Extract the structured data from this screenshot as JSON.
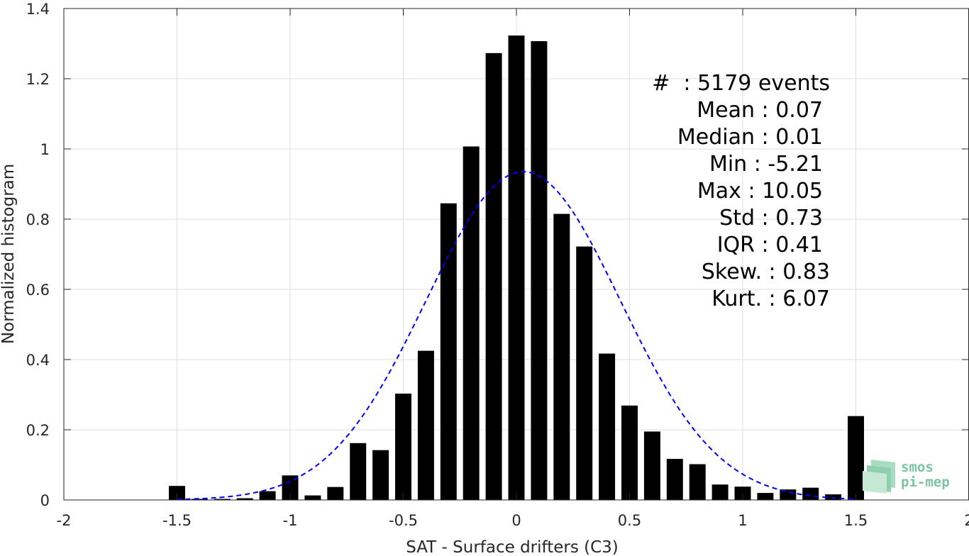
{
  "chart_data": {
    "type": "bar",
    "xlabel": "SAT - Surface drifters (C3)",
    "ylabel": "Normalized histogram",
    "xlim": [
      -2,
      2
    ],
    "ylim": [
      0,
      1.4
    ],
    "xticks": [
      -2,
      -1.5,
      -1,
      -0.5,
      0,
      0.5,
      1,
      1.5,
      2
    ],
    "xtick_labels": [
      "-2",
      "-1.5",
      "-1",
      "-0.5",
      "0",
      "0.5",
      "1",
      "1.5",
      "2"
    ],
    "yticks": [
      0,
      0.2,
      0.4,
      0.6,
      0.8,
      1,
      1.2,
      1.4
    ],
    "ytick_labels": [
      "0",
      "0.2",
      "0.4",
      "0.6",
      "0.8",
      "1",
      "1.2",
      "1.4"
    ],
    "grid": true,
    "bar_color": "#000000",
    "bin_width": 0.1,
    "bins": [
      -1.5,
      -1.4,
      -1.3,
      -1.2,
      -1.1,
      -1.0,
      -0.9,
      -0.8,
      -0.7,
      -0.6,
      -0.5,
      -0.4,
      -0.3,
      -0.2,
      -0.1,
      0.0,
      0.1,
      0.2,
      0.3,
      0.4,
      0.5,
      0.6,
      0.7,
      0.8,
      0.9,
      1.0,
      1.1,
      1.2,
      1.3,
      1.4,
      1.5
    ],
    "values": [
      0.04,
      0.003,
      0.003,
      0.005,
      0.025,
      0.07,
      0.013,
      0.037,
      0.162,
      0.142,
      0.303,
      0.425,
      0.845,
      1.007,
      1.273,
      1.323,
      1.307,
      0.815,
      0.722,
      0.417,
      0.269,
      0.195,
      0.117,
      0.102,
      0.044,
      0.038,
      0.02,
      0.03,
      0.035,
      0.016,
      0.239
    ],
    "fit_curve": {
      "type": "normal",
      "mean": 0.03,
      "std": 0.43,
      "peak": 0.935,
      "color": "#0000ff",
      "style": "dashed",
      "x_range": [
        -1.5,
        1.5
      ]
    },
    "annotation_lines": [
      "#  : 5179 events",
      "Mean : 0.07",
      "Median : 0.01",
      "Min : -5.21",
      "Max : 10.05",
      "Std : 0.73",
      "IQR : 0.41",
      "Skew. : 0.83",
      "Kurt. : 6.07"
    ]
  },
  "logo": {
    "line1": "smos",
    "line2": "pi-mep",
    "color": "#7cc5a0"
  }
}
